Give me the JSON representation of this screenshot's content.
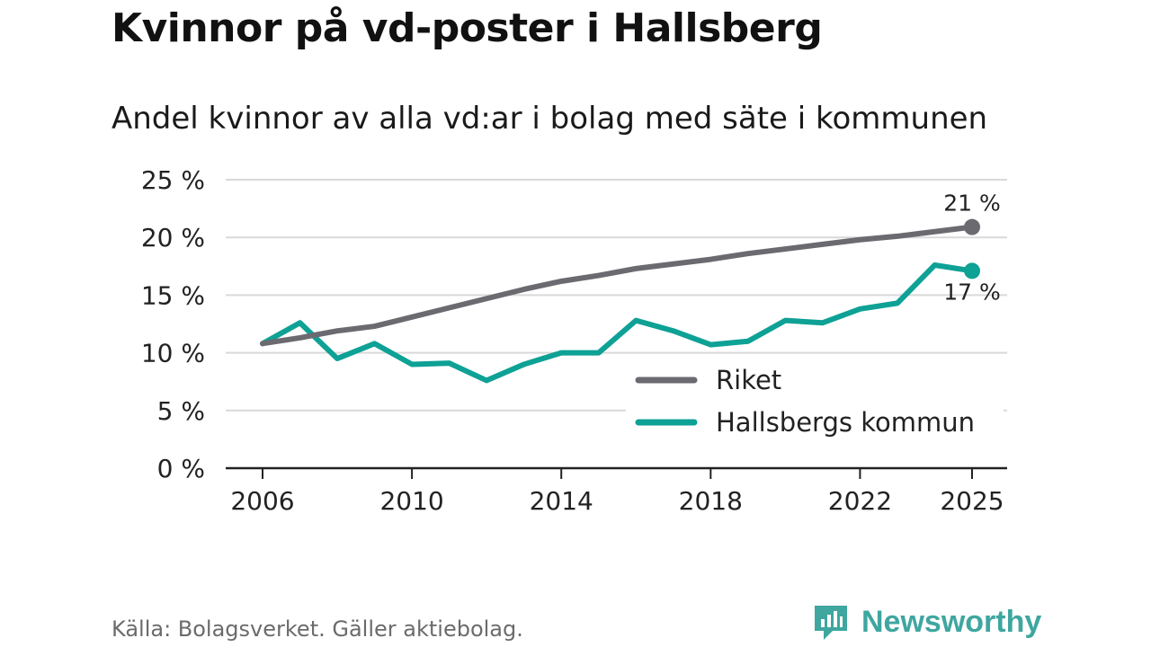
{
  "title": "Kvinnor på vd-poster i Hallsberg",
  "subtitle": "Andel kvinnor av alla vd:ar i bolag med säte i kommunen",
  "source": "Källa: Bolagsverket. Gäller aktiebolag.",
  "brand": "Newsworthy",
  "colors": {
    "riket": "#6b6a70",
    "kommun": "#0ea195",
    "grid": "#d9d9d9",
    "axis": "#222222",
    "brand": "#3fa6a0"
  },
  "chart_data": {
    "type": "line",
    "x": [
      2006,
      2007,
      2008,
      2009,
      2010,
      2011,
      2012,
      2013,
      2014,
      2015,
      2016,
      2017,
      2018,
      2019,
      2020,
      2021,
      2022,
      2023,
      2024,
      2025
    ],
    "series": [
      {
        "name": "Riket",
        "color": "#6b6a70",
        "values": [
          10.8,
          11.3,
          11.9,
          12.3,
          13.1,
          13.9,
          14.7,
          15.5,
          16.2,
          16.7,
          17.3,
          17.7,
          18.1,
          18.6,
          19.0,
          19.4,
          19.8,
          20.1,
          20.5,
          20.9
        ]
      },
      {
        "name": "Hallsbergs kommun",
        "color": "#0ea195",
        "values": [
          10.8,
          12.6,
          9.5,
          10.8,
          9.0,
          9.1,
          7.6,
          9.0,
          10.0,
          10.0,
          12.8,
          11.9,
          10.7,
          11.0,
          12.8,
          12.6,
          13.8,
          14.3,
          17.6,
          17.1
        ]
      }
    ],
    "end_labels": [
      "21 %",
      "17 %"
    ],
    "yticks": [
      0,
      5,
      10,
      15,
      20,
      25
    ],
    "ytick_labels": [
      "0 %",
      "5 %",
      "10 %",
      "15 %",
      "20 %",
      "25 %"
    ],
    "xticks": [
      2006,
      2010,
      2014,
      2018,
      2022,
      2025
    ],
    "xtick_labels": [
      "2006",
      "2010",
      "2014",
      "2018",
      "2022",
      "2025"
    ],
    "ylim": [
      0,
      25
    ],
    "xlim": [
      2006,
      2025
    ],
    "legend": [
      "Riket",
      "Hallsbergs kommun"
    ],
    "legend_position": "bottom-right",
    "xlabel": "",
    "ylabel": "",
    "grid": true
  }
}
